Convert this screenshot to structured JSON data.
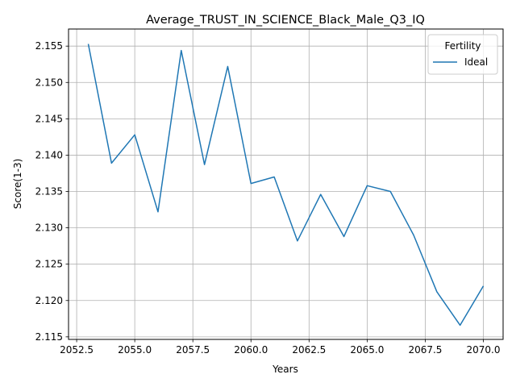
{
  "chart_data": {
    "type": "line",
    "title": "Average_TRUST_IN_SCIENCE_Black_Male_Q3_IQ",
    "xlabel": "Years",
    "ylabel": "Score(1-3)",
    "x": [
      2053,
      2054,
      2055,
      2056,
      2057,
      2058,
      2059,
      2060,
      2061,
      2062,
      2063,
      2064,
      2065,
      2066,
      2067,
      2068,
      2069,
      2070
    ],
    "series": [
      {
        "name": "Ideal",
        "color": "#1f77b4",
        "values": [
          2.1553,
          2.1389,
          2.1428,
          2.1322,
          2.1544,
          2.1387,
          2.1522,
          2.1361,
          2.137,
          2.1282,
          2.1346,
          2.1288,
          2.1358,
          2.135,
          2.129,
          2.1212,
          2.1166,
          2.122
        ]
      }
    ],
    "xlim": [
      2052.15,
      2070.85
    ],
    "ylim": [
      2.11465,
      2.15735
    ],
    "xticks": [
      "2052.5",
      "2055.0",
      "2057.5",
      "2060.0",
      "2062.5",
      "2065.0",
      "2067.5",
      "2070.0"
    ],
    "yticks": [
      "2.115",
      "2.120",
      "2.125",
      "2.130",
      "2.135",
      "2.140",
      "2.145",
      "2.150",
      "2.155"
    ],
    "grid": true,
    "legend": {
      "title": "Fertility",
      "placement": "top-right"
    }
  }
}
